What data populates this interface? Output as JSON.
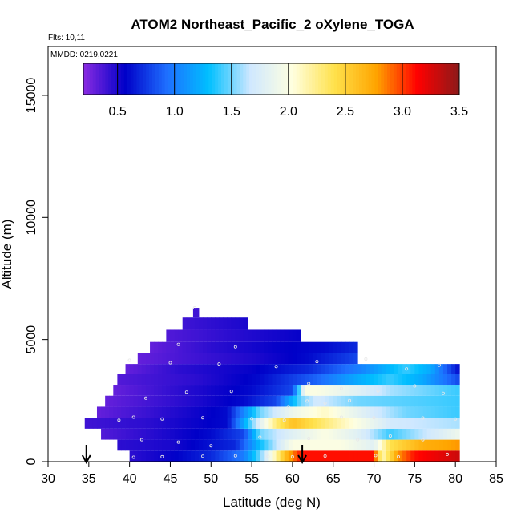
{
  "chart_data": {
    "type": "heatmap",
    "title": "ATOM2 Northeast_Pacific_2 oXylene_TOGA",
    "flights_label": "Flts: 10,11",
    "dates_label": "MMDD: 0219,0221",
    "xlabel": "Latitude (deg N)",
    "ylabel": "Altitude (m)",
    "xlim": [
      30,
      85
    ],
    "ylim": [
      0,
      17000
    ],
    "x_ticks": [
      "30",
      "35",
      "40",
      "45",
      "50",
      "55",
      "60",
      "65",
      "70",
      "75",
      "80",
      "85"
    ],
    "y_ticks": [
      "0",
      "5000",
      "10000",
      "15000"
    ],
    "colorbar": {
      "range": [
        0.2,
        3.5
      ],
      "ticks": [
        "0.5",
        "1.0",
        "1.5",
        "2.0",
        "2.5",
        "3.0",
        "3.5"
      ],
      "colors": [
        "#8a2be2",
        "#0000c8",
        "#1e6fff",
        "#00bfff",
        "#cfe8ff",
        "#ffffe0",
        "#ffe24d",
        "#ffa500",
        "#ff0000",
        "#8b1a1a"
      ]
    },
    "arrows_latitude": [
      34.7,
      61.2
    ],
    "bands": [
      {
        "alt": [
          0,
          450
        ],
        "lat": [
          40,
          80.5
        ],
        "stops": [
          [
            40,
            0.45
          ],
          [
            45,
            0.55
          ],
          [
            50,
            0.7
          ],
          [
            54,
            1.0
          ],
          [
            56,
            1.5
          ],
          [
            58,
            2.2
          ],
          [
            59,
            2.6
          ],
          [
            61,
            3.1
          ],
          [
            70,
            3.1
          ],
          [
            71,
            2.1
          ],
          [
            73,
            2.8
          ],
          [
            75,
            3.1
          ],
          [
            80.5,
            3.3
          ]
        ]
      },
      {
        "alt": [
          450,
          900
        ],
        "lat": [
          38.5,
          80.5
        ],
        "stops": [
          [
            38.5,
            0.45
          ],
          [
            45,
            0.5
          ],
          [
            53,
            0.7
          ],
          [
            56,
            1.3
          ],
          [
            60,
            2.0
          ],
          [
            66,
            2.0
          ],
          [
            70,
            1.8
          ],
          [
            72,
            2.4
          ],
          [
            76,
            2.7
          ],
          [
            80.5,
            2.8
          ]
        ]
      },
      {
        "alt": [
          900,
          1350
        ],
        "lat": [
          36.5,
          80.5
        ],
        "stops": [
          [
            36.5,
            0.35
          ],
          [
            42,
            0.45
          ],
          [
            50,
            0.6
          ],
          [
            54,
            0.8
          ],
          [
            56,
            1.5
          ],
          [
            60,
            1.8
          ],
          [
            64,
            2.0
          ],
          [
            68,
            1.8
          ],
          [
            72,
            1.4
          ],
          [
            80.5,
            1.9
          ]
        ]
      },
      {
        "alt": [
          1350,
          1800
        ],
        "lat": [
          34.5,
          80.5
        ],
        "stops": [
          [
            34.5,
            0.4
          ],
          [
            42,
            0.45
          ],
          [
            52,
            0.6
          ],
          [
            56,
            1.8
          ],
          [
            58,
            2.3
          ],
          [
            60,
            2.6
          ],
          [
            64,
            2.3
          ],
          [
            68,
            2.0
          ],
          [
            72,
            1.7
          ],
          [
            80.5,
            1.6
          ]
        ]
      },
      {
        "alt": [
          1800,
          2250
        ],
        "lat": [
          36,
          80.5
        ],
        "stops": [
          [
            36,
            0.3
          ],
          [
            44,
            0.45
          ],
          [
            52,
            0.6
          ],
          [
            56,
            1.5
          ],
          [
            60,
            1.9
          ],
          [
            64,
            2.1
          ],
          [
            70,
            1.7
          ],
          [
            74,
            1.5
          ],
          [
            80.5,
            1.4
          ]
        ]
      },
      {
        "alt": [
          2250,
          2700
        ],
        "lat": [
          37,
          80.5
        ],
        "stops": [
          [
            37,
            0.3
          ],
          [
            46,
            0.45
          ],
          [
            54,
            0.6
          ],
          [
            58,
            0.8
          ],
          [
            61,
            1.5
          ],
          [
            63,
            1.7
          ],
          [
            68,
            1.5
          ],
          [
            80.5,
            1.4
          ]
        ]
      },
      {
        "alt": [
          2700,
          3150
        ],
        "lat": [
          38,
          80.5
        ],
        "stops": [
          [
            38,
            0.3
          ],
          [
            46,
            0.45
          ],
          [
            55,
            0.6
          ],
          [
            60,
            0.8
          ],
          [
            61.5,
            2.0
          ],
          [
            63,
            2.0
          ],
          [
            68,
            1.8
          ],
          [
            72,
            1.6
          ],
          [
            80.5,
            1.4
          ]
        ]
      },
      {
        "alt": [
          3150,
          3600
        ],
        "lat": [
          38.5,
          80.5
        ],
        "stops": [
          [
            38.5,
            0.35
          ],
          [
            48,
            0.45
          ],
          [
            56,
            0.6
          ],
          [
            63,
            0.9
          ],
          [
            68,
            1.2
          ],
          [
            72,
            1.4
          ],
          [
            76,
            1.2
          ],
          [
            80.5,
            0.8
          ]
        ]
      },
      {
        "alt": [
          3600,
          4000
        ],
        "lat": [
          39.5,
          80.5
        ],
        "stops": [
          [
            39.5,
            0.3
          ],
          [
            46,
            0.45
          ],
          [
            55,
            0.55
          ],
          [
            62,
            0.7
          ],
          [
            68,
            1.0
          ],
          [
            74,
            1.4
          ],
          [
            77,
            1.2
          ],
          [
            80.5,
            0.6
          ]
        ]
      },
      {
        "alt": [
          4000,
          4450
        ],
        "lat": [
          41,
          68
        ],
        "stops": [
          [
            41,
            0.3
          ],
          [
            48,
            0.4
          ],
          [
            56,
            0.5
          ],
          [
            62,
            0.6
          ],
          [
            68,
            0.8
          ]
        ]
      },
      {
        "alt": [
          4450,
          4900
        ],
        "lat": [
          42.5,
          68
        ],
        "stops": [
          [
            42.5,
            0.3
          ],
          [
            50,
            0.45
          ],
          [
            58,
            0.55
          ],
          [
            64,
            0.6
          ],
          [
            68,
            0.7
          ]
        ]
      },
      {
        "alt": [
          4900,
          5400
        ],
        "lat": [
          44.5,
          61
        ],
        "stops": [
          [
            44.5,
            0.35
          ],
          [
            52,
            0.45
          ],
          [
            61,
            0.55
          ]
        ]
      },
      {
        "alt": [
          5400,
          5900
        ],
        "lat": [
          46.5,
          54.5
        ],
        "stops": [
          [
            46.5,
            0.4
          ],
          [
            54.5,
            0.5
          ]
        ]
      },
      {
        "alt": [
          5900,
          6300
        ],
        "lat": [
          47.8,
          48.5
        ],
        "stops": [
          [
            47.8,
            0.4
          ],
          [
            48.5,
            0.4
          ]
        ]
      }
    ],
    "sample_points": [
      [
        40.5,
        180
      ],
      [
        44,
        200
      ],
      [
        49,
        220
      ],
      [
        53,
        240
      ],
      [
        57,
        210
      ],
      [
        60,
        200
      ],
      [
        64,
        230
      ],
      [
        70.2,
        250
      ],
      [
        73,
        200
      ],
      [
        79,
        300
      ],
      [
        38.7,
        1700
      ],
      [
        40.5,
        1820
      ],
      [
        44,
        1750
      ],
      [
        49,
        1800
      ],
      [
        55,
        1760
      ],
      [
        59,
        1700
      ],
      [
        66,
        1820
      ],
      [
        70,
        1800
      ],
      [
        76,
        1790
      ],
      [
        80,
        1750
      ],
      [
        40,
        4150
      ],
      [
        45,
        4050
      ],
      [
        51,
        4000
      ],
      [
        58,
        3900
      ],
      [
        63,
        4100
      ],
      [
        69,
        4200
      ],
      [
        74,
        3800
      ],
      [
        78,
        3950
      ],
      [
        42,
        2600
      ],
      [
        47,
        2850
      ],
      [
        52.5,
        2880
      ],
      [
        59.5,
        2250
      ],
      [
        64,
        2400
      ],
      [
        67,
        2500
      ],
      [
        70.5,
        2900
      ],
      [
        75,
        3100
      ],
      [
        78.5,
        2800
      ],
      [
        41.5,
        900
      ],
      [
        46,
        800
      ],
      [
        50,
        650
      ],
      [
        56,
        1000
      ],
      [
        62,
        950
      ],
      [
        68,
        900
      ],
      [
        72,
        1050
      ],
      [
        76,
        900
      ],
      [
        48,
        6300
      ],
      [
        46,
        4800
      ],
      [
        53,
        4700
      ],
      [
        62,
        3200
      ],
      [
        66,
        3000
      ],
      [
        61.8,
        2480
      ]
    ]
  }
}
